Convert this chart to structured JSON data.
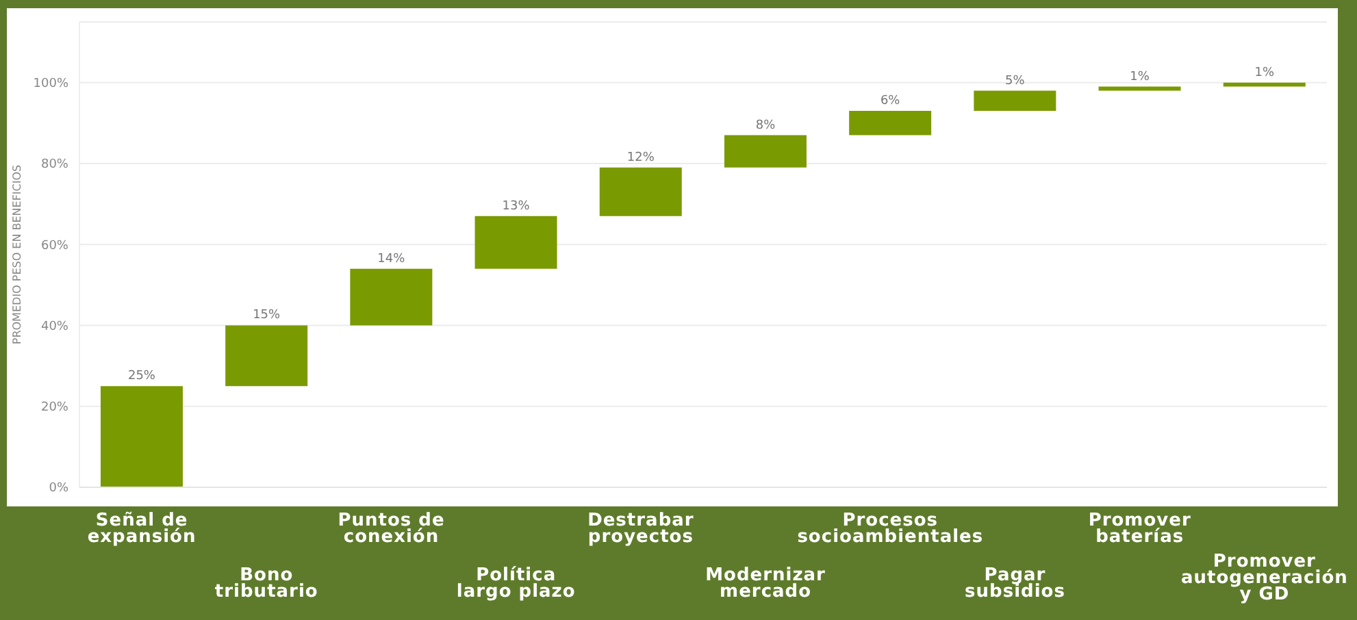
{
  "chart_data": {
    "type": "bar",
    "ylabel": "PROMEDIO PESO EN BENEFICIOS",
    "categories": [
      "Señal de expansión",
      "Bono tributario",
      "Puntos de conexión",
      "Política largo plazo",
      "Destrabar proyectos",
      "Modernizar mercado",
      "Procesos socioambientales",
      "Pagar subsidios",
      "Promover baterías",
      "Promover autogeneración y GD"
    ],
    "values": [
      25,
      15,
      14,
      13,
      12,
      8,
      6,
      5,
      1,
      1
    ],
    "base": [
      0,
      25,
      40,
      54,
      67,
      79,
      87,
      93,
      98,
      99
    ],
    "value_labels": [
      "25%",
      "15%",
      "14%",
      "13%",
      "12%",
      "8%",
      "6%",
      "5%",
      "1%",
      "1%"
    ],
    "color": "#7a9a01",
    "ylim": [
      0,
      115
    ],
    "yticks": [
      {
        "value": 0,
        "label": "0%"
      },
      {
        "value": 20,
        "label": "20%"
      },
      {
        "value": 40,
        "label": "40%"
      },
      {
        "value": 60,
        "label": "60%"
      },
      {
        "value": 80,
        "label": "80%"
      },
      {
        "value": 100,
        "label": "100%"
      }
    ],
    "grid": "y",
    "legend": false
  }
}
